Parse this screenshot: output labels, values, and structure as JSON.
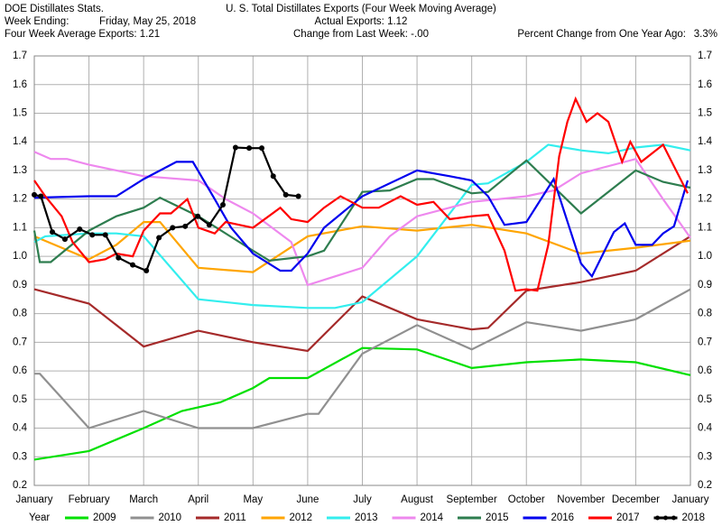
{
  "chart_data": {
    "type": "line",
    "header": {
      "source": "DOE Distillates Stats.",
      "week_label": "Week Ending:",
      "week_value": "Friday, May 25, 2018",
      "four_week": "Four Week Average Exports: 1.21",
      "actual": "Actual Exports: 1.12",
      "change": "Change from Last Week: -.00",
      "pct_label": "Percent Change from One Year Ago:",
      "pct_value": "3.3%"
    },
    "title": "U. S. Total Distillates Exports (Four Week Moving Average)",
    "legend_title": "Year",
    "legend": "bottom",
    "grid": true,
    "xlim": [
      0,
      12
    ],
    "xticks": [
      {
        "value": 0,
        "label": "January"
      },
      {
        "value": 1,
        "label": "February"
      },
      {
        "value": 2,
        "label": "March"
      },
      {
        "value": 3,
        "label": "April"
      },
      {
        "value": 4,
        "label": "May"
      },
      {
        "value": 5,
        "label": "June"
      },
      {
        "value": 6,
        "label": "July"
      },
      {
        "value": 7,
        "label": "August"
      },
      {
        "value": 8,
        "label": "September"
      },
      {
        "value": 9,
        "label": "October"
      },
      {
        "value": 10,
        "label": "November"
      },
      {
        "value": 11,
        "label": "December"
      },
      {
        "value": 12,
        "label": "January"
      }
    ],
    "ylim": [
      0.2,
      1.7
    ],
    "yticks": [
      0.2,
      0.3,
      0.4,
      0.5,
      0.6,
      0.7,
      0.8,
      0.9,
      {
        "value": 1,
        "label": "1.0"
      },
      1.1,
      1.2,
      1.3,
      1.4,
      1.5,
      1.6,
      1.7
    ],
    "series": [
      {
        "name": "2009",
        "color": "#00e000",
        "x": [
          0,
          1,
          1.5,
          2,
          2.7,
          3.4,
          4,
          4.3,
          5,
          6,
          7,
          8,
          9,
          10,
          11,
          12
        ],
        "values": [
          0.29,
          0.32,
          0.36,
          0.4,
          0.46,
          0.49,
          0.54,
          0.575,
          0.575,
          0.68,
          0.675,
          0.61,
          0.63,
          0.64,
          0.63,
          0.585
        ]
      },
      {
        "name": "2010",
        "color": "#909090",
        "x": [
          0,
          0.1,
          1,
          2,
          3,
          4,
          5,
          5.2,
          6,
          7,
          8,
          9,
          10,
          11,
          12
        ],
        "values": [
          0.59,
          0.59,
          0.4,
          0.46,
          0.4,
          0.4,
          0.45,
          0.45,
          0.66,
          0.76,
          0.675,
          0.77,
          0.74,
          0.78,
          0.885
        ]
      },
      {
        "name": "2011",
        "color": "#a52a2a",
        "x": [
          0,
          1,
          2,
          3,
          4,
          5,
          6,
          7,
          8,
          8.3,
          9,
          10,
          11,
          12
        ],
        "values": [
          0.885,
          0.835,
          0.685,
          0.74,
          0.7,
          0.67,
          0.86,
          0.78,
          0.745,
          0.75,
          0.88,
          0.91,
          0.95,
          1.07
        ]
      },
      {
        "name": "2012",
        "color": "#ffa500",
        "x": [
          0,
          1,
          1.5,
          2,
          2.3,
          3,
          4,
          5,
          6,
          7,
          7.5,
          8,
          9,
          10,
          11,
          12
        ],
        "values": [
          1.07,
          0.99,
          1.04,
          1.12,
          1.12,
          0.96,
          0.945,
          1.07,
          1.105,
          1.09,
          1.1,
          1.11,
          1.08,
          1.01,
          1.03,
          1.055
        ]
      },
      {
        "name": "2013",
        "color": "#33eeee",
        "x": [
          0,
          0.2,
          1,
          1.5,
          2,
          3,
          4,
          5,
          5.5,
          6,
          7,
          8,
          8.3,
          9,
          9.4,
          10,
          10.5,
          11,
          11.5,
          12
        ],
        "values": [
          1.05,
          1.07,
          1.08,
          1.08,
          1.07,
          0.85,
          0.83,
          0.82,
          0.82,
          0.84,
          1.0,
          1.25,
          1.255,
          1.33,
          1.39,
          1.37,
          1.36,
          1.38,
          1.39,
          1.37
        ]
      },
      {
        "name": "2014",
        "color": "#ee88ee",
        "x": [
          0,
          0.3,
          0.6,
          1,
          2,
          3,
          3.5,
          4,
          4.7,
          5,
          6,
          6.5,
          7,
          8,
          9,
          9.5,
          10,
          11,
          11.5,
          12
        ],
        "values": [
          1.365,
          1.34,
          1.34,
          1.32,
          1.28,
          1.265,
          1.2,
          1.15,
          1.05,
          0.9,
          0.96,
          1.07,
          1.14,
          1.19,
          1.21,
          1.23,
          1.29,
          1.34,
          1.2,
          1.065
        ]
      },
      {
        "name": "2015",
        "color": "#2e7d4f",
        "x": [
          0,
          0.1,
          0.3,
          1,
          1.5,
          2,
          2.3,
          3,
          4,
          4.3,
          5,
          5.3,
          6,
          6.5,
          7,
          7.3,
          8,
          8.3,
          9,
          10,
          11,
          11.5,
          12
        ],
        "values": [
          1.09,
          0.98,
          0.98,
          1.09,
          1.14,
          1.17,
          1.205,
          1.14,
          1.02,
          0.985,
          1.0,
          1.02,
          1.225,
          1.23,
          1.27,
          1.27,
          1.22,
          1.225,
          1.335,
          1.15,
          1.3,
          1.26,
          1.24
        ]
      },
      {
        "name": "2016",
        "color": "#0000ee",
        "x": [
          0,
          1,
          1.5,
          2,
          2.6,
          2.9,
          3.3,
          3.6,
          4,
          4.5,
          4.7,
          5,
          5.3,
          6,
          7,
          7.6,
          8,
          8.3,
          8.6,
          9,
          9.5,
          10,
          10.2,
          10.6,
          10.8,
          11,
          11.3,
          11.5,
          11.7,
          11.95
        ],
        "values": [
          1.205,
          1.21,
          1.21,
          1.27,
          1.33,
          1.33,
          1.2,
          1.1,
          1.01,
          0.95,
          0.95,
          1.01,
          1.1,
          1.21,
          1.3,
          1.28,
          1.265,
          1.21,
          1.11,
          1.12,
          1.27,
          0.975,
          0.93,
          1.085,
          1.115,
          1.04,
          1.04,
          1.08,
          1.105,
          1.265
        ]
      },
      {
        "name": "2017",
        "color": "#ff0000",
        "x": [
          0,
          0.2,
          0.5,
          0.7,
          1,
          1.3,
          1.5,
          1.8,
          2,
          2.3,
          2.5,
          2.8,
          3,
          3.3,
          3.5,
          4,
          4.5,
          4.7,
          5,
          5.3,
          5.6,
          6,
          6.3,
          6.7,
          7,
          7.3,
          7.6,
          8,
          8.3,
          8.6,
          8.8,
          9,
          9.2,
          9.4,
          9.6,
          9.75,
          9.9,
          10.1,
          10.3,
          10.5,
          10.75,
          10.9,
          11.1,
          11.5,
          11.95
        ],
        "values": [
          1.265,
          1.21,
          1.14,
          1.05,
          0.98,
          0.99,
          1.01,
          1.0,
          1.09,
          1.15,
          1.15,
          1.2,
          1.1,
          1.08,
          1.12,
          1.1,
          1.17,
          1.13,
          1.12,
          1.17,
          1.21,
          1.17,
          1.17,
          1.21,
          1.18,
          1.19,
          1.13,
          1.14,
          1.145,
          1.02,
          0.88,
          0.885,
          0.88,
          1.04,
          1.35,
          1.47,
          1.55,
          1.47,
          1.5,
          1.47,
          1.33,
          1.4,
          1.33,
          1.39,
          1.22
        ]
      },
      {
        "name": "2018",
        "color": "#000000",
        "marker": "circle",
        "x": [
          0,
          0.12,
          0.33,
          0.56,
          0.83,
          1.06,
          1.3,
          1.54,
          1.8,
          2.05,
          2.28,
          2.53,
          2.76,
          2.99,
          3.2,
          3.45,
          3.68,
          3.93,
          4.16,
          4.37,
          4.6,
          4.83
        ],
        "values": [
          1.215,
          1.21,
          1.085,
          1.06,
          1.095,
          1.075,
          1.075,
          0.995,
          0.97,
          0.95,
          1.065,
          1.1,
          1.105,
          1.14,
          1.11,
          1.18,
          1.38,
          1.378,
          1.378,
          1.28,
          1.215,
          1.21
        ]
      }
    ]
  }
}
